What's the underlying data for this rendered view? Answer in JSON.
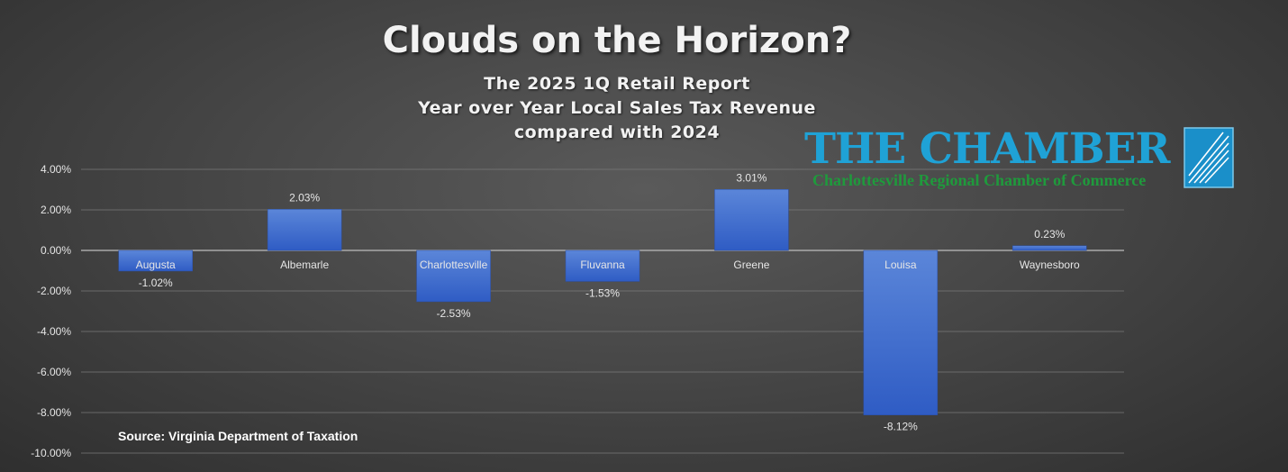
{
  "header": {
    "title": "Clouds on the Horizon?",
    "subtitle_lines": [
      "The 2025 1Q Retail Report",
      "Year over Year Local Sales Tax Revenue",
      "compared with 2024"
    ]
  },
  "logo": {
    "main": "THE CHAMBER",
    "sub": "Charlottesville Regional Chamber of Commerce"
  },
  "source": "Source: Virginia Department of Taxation",
  "colors": {
    "bar_top": "#5b86d9",
    "bar_bottom": "#2f5cc4",
    "gridline": "#7a7a7a"
  },
  "chart_data": {
    "type": "bar",
    "categories": [
      "Augusta",
      "Albemarle",
      "Charlottesville",
      "Fluvanna",
      "Greene",
      "Louisa",
      "Waynesboro"
    ],
    "values": [
      -1.02,
      2.03,
      -2.53,
      -1.53,
      3.01,
      -8.12,
      0.23
    ],
    "data_labels": [
      "-1.02%",
      "2.03%",
      "-2.53%",
      "-1.53%",
      "3.01%",
      "-8.12%",
      "0.23%"
    ],
    "ylim": [
      -10,
      4
    ],
    "yticks": [
      4,
      2,
      0,
      -2,
      -4,
      -6,
      -8,
      -10
    ],
    "ytick_labels": [
      "4.00%",
      "2.00%",
      "0.00%",
      "-2.00%",
      "-4.00%",
      "-6.00%",
      "-8.00%",
      "-10.00%"
    ],
    "grid": true,
    "legend": "none"
  }
}
